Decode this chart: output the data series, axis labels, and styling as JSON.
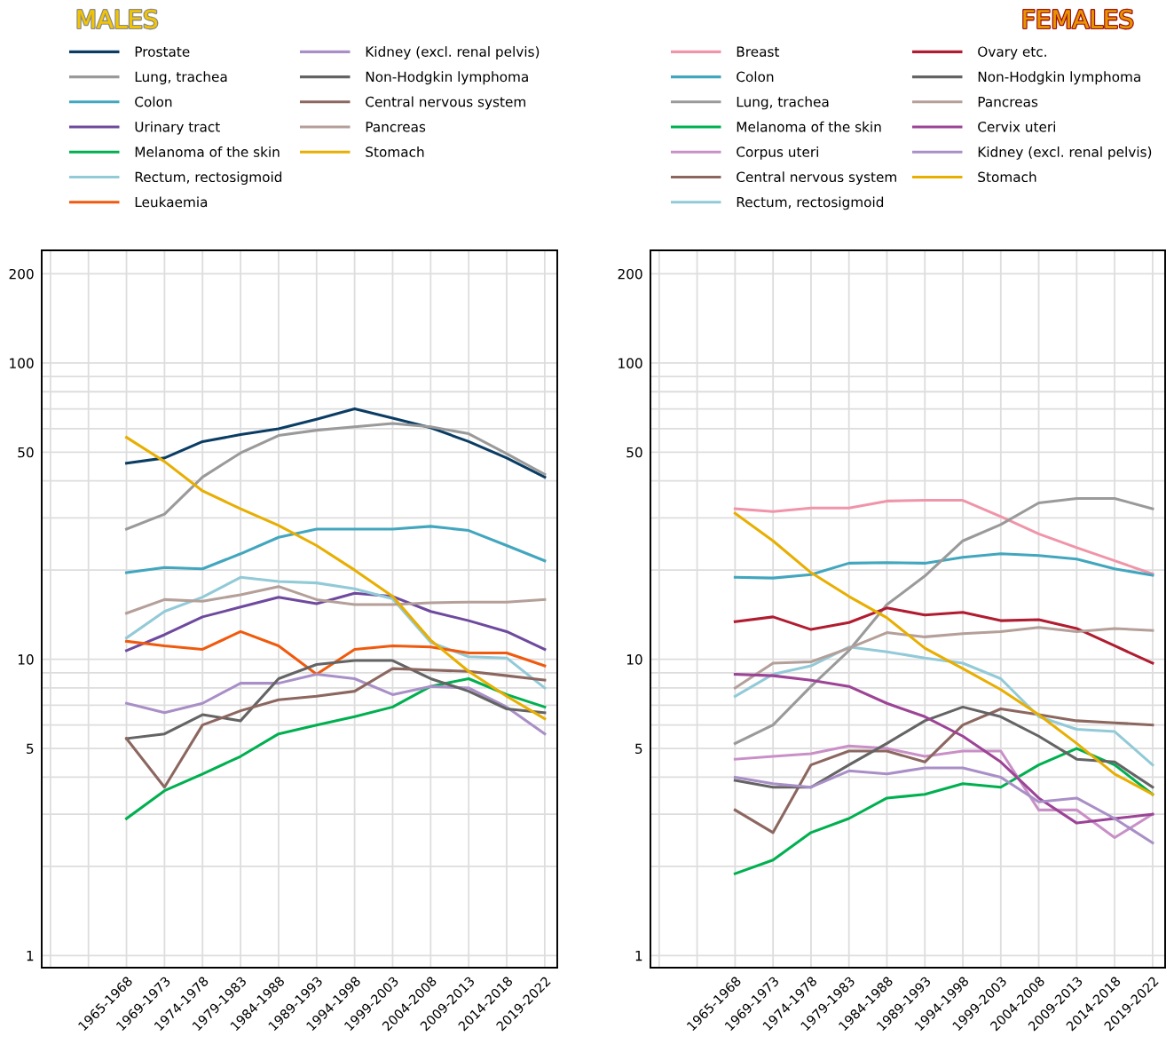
{
  "chart_data": [
    {
      "type": "line",
      "title": "MALES",
      "categories": [
        null,
        null,
        "1965-1968",
        "1969-1973",
        "1974-1978",
        "1979-1983",
        "1984-1988",
        "1989-1993",
        "1994-1998",
        "1999-2003",
        "2004-2008",
        "2009-2013",
        "2014-2018",
        "2019-2022"
      ],
      "log": true,
      "ylim": [
        0.91,
        240
      ],
      "yticks": [
        1,
        {
          "value": 2,
          "label": null
        },
        {
          "value": 3,
          "label": null
        },
        {
          "value": 4,
          "label": null
        },
        5,
        {
          "value": 6,
          "label": null
        },
        {
          "value": 7,
          "label": null
        },
        {
          "value": 8,
          "label": null
        },
        {
          "value": 9,
          "label": null
        },
        10,
        {
          "value": 20,
          "label": null
        },
        {
          "value": 30,
          "label": null
        },
        {
          "value": 40,
          "label": null
        },
        50,
        {
          "value": 60,
          "label": null
        },
        {
          "value": 70,
          "label": null
        },
        {
          "value": 80,
          "label": null
        },
        {
          "value": 90,
          "label": null
        },
        100,
        200
      ],
      "grid": true,
      "legend": "top",
      "line_style": "solid",
      "marker": "none",
      "series": [
        {
          "name": "Prostate",
          "color": "#0b3d64",
          "values": [
            null,
            null,
            45.9,
            47.8,
            54.3,
            57.3,
            60.0,
            64.6,
            70.0,
            65.1,
            60.5,
            54.3,
            47.8,
            41.2
          ]
        },
        {
          "name": "Lung, trachea",
          "color": "#9a9a9a",
          "values": [
            null,
            null,
            27.5,
            30.9,
            41.2,
            49.7,
            56.9,
            59.3,
            60.9,
            62.5,
            60.9,
            57.7,
            49.4,
            42.1
          ]
        },
        {
          "name": "Colon",
          "color": "#42a6be",
          "values": [
            null,
            null,
            19.6,
            20.4,
            20.2,
            22.7,
            25.8,
            27.5,
            27.5,
            27.5,
            28.1,
            27.2,
            24.2,
            21.5
          ]
        },
        {
          "name": "Urinary tract",
          "color": "#6e4a9e",
          "values": [
            null,
            null,
            10.7,
            12.1,
            13.9,
            15.0,
            16.2,
            15.4,
            16.7,
            16.3,
            14.5,
            13.5,
            12.4,
            10.8
          ]
        },
        {
          "name": "Melanoma of the skin",
          "color": "#00b050",
          "values": [
            null,
            null,
            2.9,
            3.6,
            4.1,
            4.7,
            5.6,
            6.0,
            6.4,
            6.9,
            8.1,
            8.6,
            7.6,
            6.9
          ]
        },
        {
          "name": "Rectum, rectosigmoid",
          "color": "#92cad7",
          "values": [
            null,
            null,
            11.8,
            14.5,
            16.2,
            18.9,
            18.3,
            18.1,
            17.3,
            16.0,
            11.4,
            10.2,
            10.1,
            8.0
          ]
        },
        {
          "name": "Leukaemia",
          "color": "#f05a0e",
          "values": [
            null,
            null,
            11.5,
            11.1,
            10.8,
            12.4,
            11.1,
            8.9,
            10.8,
            11.1,
            11.0,
            10.5,
            10.5,
            9.5
          ]
        },
        {
          "name": "Kidney (excl. renal pelvis)",
          "color": "#a98fc7",
          "values": [
            null,
            null,
            7.1,
            6.6,
            7.1,
            8.3,
            8.3,
            8.9,
            8.6,
            7.6,
            8.1,
            8.0,
            6.9,
            5.6
          ]
        },
        {
          "name": "Non-Hodgkin lymphoma",
          "color": "#646464",
          "values": [
            null,
            null,
            5.4,
            5.6,
            6.5,
            6.2,
            8.6,
            9.6,
            9.9,
            9.9,
            8.6,
            7.8,
            6.8,
            6.6
          ]
        },
        {
          "name": "Central nervous system",
          "color": "#8c6760",
          "values": [
            null,
            null,
            5.4,
            3.7,
            6.0,
            6.7,
            7.3,
            7.5,
            7.8,
            9.3,
            9.2,
            9.1,
            8.8,
            8.5
          ]
        },
        {
          "name": "Pancreas",
          "color": "#b49f99",
          "values": [
            null,
            null,
            14.3,
            15.9,
            15.7,
            16.5,
            17.6,
            15.9,
            15.3,
            15.3,
            15.5,
            15.6,
            15.6,
            15.9
          ]
        },
        {
          "name": "Stomach",
          "color": "#e8ae00",
          "values": [
            null,
            null,
            56.1,
            46.5,
            37.0,
            32.2,
            28.3,
            24.2,
            20.0,
            16.3,
            11.6,
            9.1,
            7.5,
            6.3
          ]
        }
      ]
    },
    {
      "type": "line",
      "title": "FEMALES",
      "categories": [
        null,
        null,
        "1965-1968",
        "1969-1973",
        "1974-1978",
        "1979-1983",
        "1984-1988",
        "1989-1993",
        "1994-1998",
        "1999-2003",
        "2004-2008",
        "2009-2013",
        "2014-2018",
        "2019-2022"
      ],
      "log": true,
      "ylim": [
        0.91,
        240
      ],
      "yticks": [
        1,
        {
          "value": 2,
          "label": null
        },
        {
          "value": 3,
          "label": null
        },
        {
          "value": 4,
          "label": null
        },
        5,
        {
          "value": 6,
          "label": null
        },
        {
          "value": 7,
          "label": null
        },
        {
          "value": 8,
          "label": null
        },
        {
          "value": 9,
          "label": null
        },
        10,
        {
          "value": 20,
          "label": null
        },
        {
          "value": 30,
          "label": null
        },
        {
          "value": 40,
          "label": null
        },
        50,
        {
          "value": 60,
          "label": null
        },
        {
          "value": 70,
          "label": null
        },
        {
          "value": 80,
          "label": null
        },
        {
          "value": 90,
          "label": null
        },
        100,
        200
      ],
      "grid": true,
      "legend": "top",
      "line_style": "solid",
      "marker": "none",
      "series": [
        {
          "name": "Breast",
          "color": "#f095a9",
          "values": [
            null,
            null,
            32.2,
            31.5,
            32.4,
            32.4,
            34.2,
            34.4,
            34.4,
            30.3,
            26.5,
            23.8,
            21.5,
            19.4
          ]
        },
        {
          "name": "Colon",
          "color": "#42a6be",
          "values": [
            null,
            null,
            18.9,
            18.8,
            19.3,
            21.1,
            21.2,
            21.1,
            22.1,
            22.7,
            22.4,
            21.8,
            20.2,
            19.2
          ]
        },
        {
          "name": "Lung, trachea",
          "color": "#9a9a9a",
          "values": [
            null,
            null,
            5.2,
            6.0,
            8.1,
            10.7,
            15.3,
            19.1,
            25.1,
            28.5,
            33.7,
            34.9,
            34.9,
            32.2
          ]
        },
        {
          "name": "Melanoma of the skin",
          "color": "#00b050",
          "values": [
            null,
            null,
            1.89,
            2.1,
            2.6,
            2.9,
            3.4,
            3.5,
            3.8,
            3.7,
            4.4,
            5.0,
            4.4,
            3.5
          ]
        },
        {
          "name": "Corpus uteri",
          "color": "#c990c7",
          "values": [
            null,
            null,
            4.6,
            4.7,
            4.8,
            5.1,
            5.0,
            4.7,
            4.9,
            4.9,
            3.1,
            3.1,
            2.5,
            3.0
          ]
        },
        {
          "name": "Central nervous system",
          "color": "#8c6760",
          "values": [
            null,
            null,
            3.1,
            2.6,
            4.4,
            4.9,
            4.9,
            4.5,
            6.0,
            6.8,
            6.5,
            6.2,
            6.1,
            6.0
          ]
        },
        {
          "name": "Rectum, rectosigmoid",
          "color": "#92cad7",
          "values": [
            null,
            null,
            7.5,
            8.9,
            9.5,
            11.0,
            10.6,
            10.1,
            9.7,
            8.6,
            6.4,
            5.8,
            5.7,
            4.4
          ]
        },
        {
          "name": "Ovary etc.",
          "color": "#b01c30",
          "values": [
            null,
            null,
            13.4,
            13.9,
            12.6,
            13.3,
            14.9,
            14.1,
            14.4,
            13.5,
            13.6,
            12.7,
            11.1,
            9.7
          ]
        },
        {
          "name": "Non-Hodgkin lymphoma",
          "color": "#646464",
          "values": [
            null,
            null,
            3.9,
            3.7,
            3.7,
            4.4,
            5.2,
            6.2,
            6.9,
            6.4,
            5.5,
            4.6,
            4.5,
            3.7
          ]
        },
        {
          "name": "Pancreas",
          "color": "#b49f99",
          "values": [
            null,
            null,
            8.0,
            9.7,
            9.8,
            10.9,
            12.3,
            11.9,
            12.2,
            12.4,
            12.8,
            12.4,
            12.7,
            12.5
          ]
        },
        {
          "name": "Cervix uteri",
          "color": "#9c4496",
          "values": [
            null,
            null,
            8.9,
            8.8,
            8.5,
            8.1,
            7.1,
            6.4,
            5.5,
            4.5,
            3.4,
            2.8,
            2.9,
            3.0
          ]
        },
        {
          "name": "Kidney (excl. renal pelvis)",
          "color": "#a98fc7",
          "values": [
            null,
            null,
            4.0,
            3.8,
            3.7,
            4.2,
            4.1,
            4.3,
            4.3,
            4.0,
            3.3,
            3.4,
            2.9,
            2.4
          ]
        },
        {
          "name": "Stomach",
          "color": "#e8ae00",
          "values": [
            null,
            null,
            31.1,
            25.1,
            19.6,
            16.3,
            13.8,
            10.9,
            9.3,
            7.9,
            6.5,
            5.2,
            4.1,
            3.5
          ]
        }
      ]
    }
  ]
}
